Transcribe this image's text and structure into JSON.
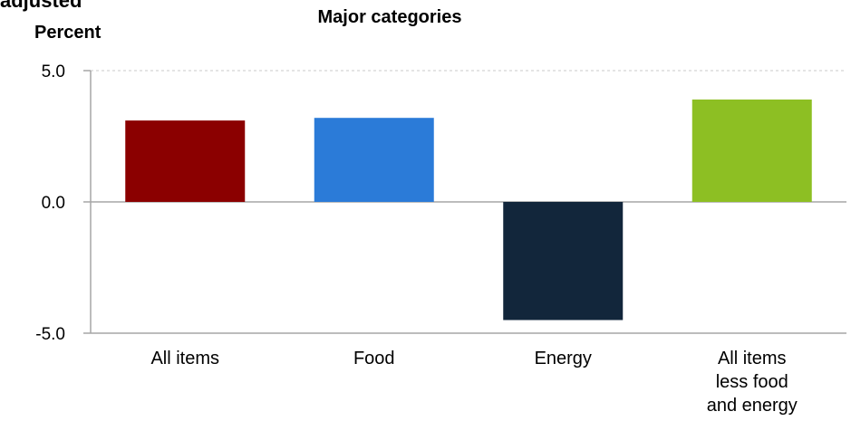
{
  "header": {
    "cut_text": "adjusted",
    "title": "Major categories"
  },
  "chart_data": {
    "type": "bar",
    "title": "Major categories",
    "ylabel": "Percent",
    "xlabel": "",
    "categories": [
      "All items",
      "Food",
      "Energy",
      "All items less food and energy"
    ],
    "category_lines": [
      [
        "All items"
      ],
      [
        "Food"
      ],
      [
        "Energy"
      ],
      [
        "All items",
        "less food",
        "and energy"
      ]
    ],
    "values": [
      3.1,
      3.2,
      -4.5,
      3.9
    ],
    "colors": [
      "#8b0000",
      "#2b7bd8",
      "#12263b",
      "#8dbf23"
    ],
    "ylim": [
      -5.0,
      5.0
    ],
    "yticks": [
      5.0,
      0.0,
      -5.0
    ],
    "ytick_labels": [
      "5.0",
      "0.0",
      "-5.0"
    ],
    "grid": true
  }
}
